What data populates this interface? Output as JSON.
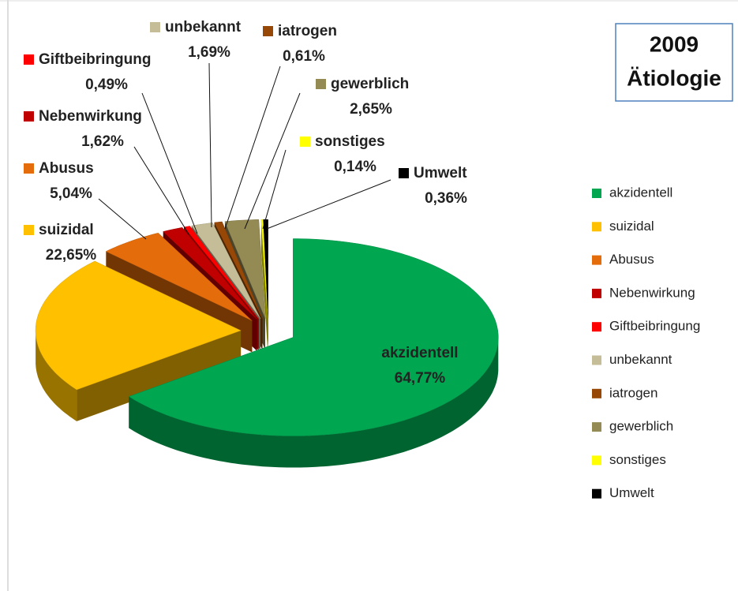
{
  "chart_data": {
    "type": "pie3d",
    "title": "2009",
    "subtitle": "Ätiologie",
    "categories": [
      "akzidentell",
      "suizidal",
      "Abusus",
      "Nebenwirkung",
      "Giftbeibringung",
      "unbekannt",
      "iatrogen",
      "gewerblich",
      "sonstiges",
      "Umwelt"
    ],
    "values": [
      64.77,
      22.65,
      5.04,
      1.62,
      0.49,
      1.69,
      0.61,
      2.65,
      0.14,
      0.36
    ],
    "value_labels": [
      "64,77%",
      "22,65%",
      "5,04%",
      "1,62%",
      "0,49%",
      "1,69%",
      "0,61%",
      "2,65%",
      "0,14%",
      "0,36%"
    ],
    "colors": [
      "#00a650",
      "#ffc000",
      "#e46c0a",
      "#c00000",
      "#ff0000",
      "#c4bd97",
      "#974806",
      "#948a54",
      "#ffff00",
      "#000000"
    ],
    "legend": "right"
  }
}
